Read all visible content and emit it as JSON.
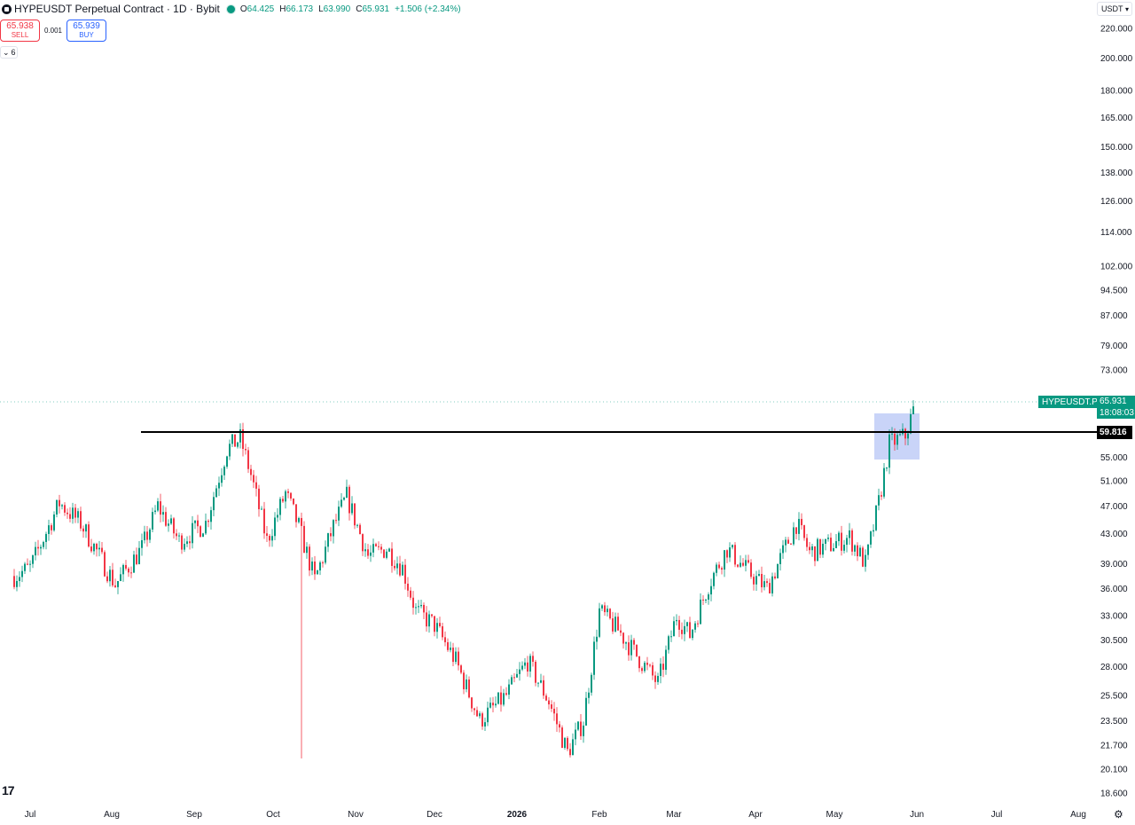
{
  "header": {
    "title": "HYPEUSDT Perpetual Contract · 1D · Bybit",
    "o_label": "O",
    "o_value": "64.425",
    "h_label": "H",
    "h_value": "66.173",
    "l_label": "L",
    "l_value": "63.990",
    "c_label": "C",
    "c_value": "65.931",
    "change": "+1.506 (+2.34%)"
  },
  "trade": {
    "sell_price": "65.938",
    "sell_label": "SELL",
    "spread": "0.001",
    "buy_price": "65.939",
    "buy_label": "BUY"
  },
  "indicators_count": "6",
  "currency": "USDT",
  "price_tag": {
    "symbol": "HYPEUSDT.P",
    "price": "65.931",
    "countdown": "18:08:03"
  },
  "level_tag": "59.816",
  "colors": {
    "up": "#089981",
    "down": "#f23645",
    "highlight": "#b7c6f5"
  },
  "chart_data": {
    "type": "candlestick",
    "scale": "log",
    "y_ticks": [
      18.6,
      20.1,
      21.7,
      23.5,
      25.5,
      28.0,
      30.5,
      33.0,
      36.0,
      39.0,
      43.0,
      47.0,
      51.0,
      55.0,
      73.0,
      79.0,
      87.0,
      94.5,
      102.0,
      114.0,
      126.0,
      138.0,
      150.0,
      165.0,
      180.0,
      200.0,
      220.0
    ],
    "y_tick_labels": [
      "18.600",
      "20.100",
      "21.700",
      "23.500",
      "25.500",
      "28.000",
      "30.500",
      "33.000",
      "36.000",
      "39.000",
      "43.000",
      "47.000",
      "51.000",
      "55.000",
      "73.000",
      "79.000",
      "87.000",
      "94.500",
      "102.000",
      "114.000",
      "126.000",
      "138.000",
      "150.000",
      "165.000",
      "180.000",
      "200.000",
      "220.000"
    ],
    "x_labels": [
      "Jul",
      "Aug",
      "Sep",
      "Oct",
      "Nov",
      "Dec",
      "2026",
      "Feb",
      "Mar",
      "Apr",
      "May",
      "Jun",
      "Jul",
      "Aug"
    ],
    "horizontal_line": 59.816,
    "last_price": 65.931,
    "highlight_box": {
      "x_from": "2026-05-17",
      "x_to": "2026-05-31",
      "y_low": 54.5,
      "y_high": 64.0
    },
    "series_anchors": [
      [
        "2025-06-25",
        37.5
      ],
      [
        "2025-07-01",
        38.5
      ],
      [
        "2025-07-12",
        47.5
      ],
      [
        "2025-07-20",
        44.5
      ],
      [
        "2025-08-02",
        36.5
      ],
      [
        "2025-08-12",
        41.0
      ],
      [
        "2025-08-18",
        47.0
      ],
      [
        "2025-08-26",
        42.0
      ],
      [
        "2025-09-05",
        44.5
      ],
      [
        "2025-09-13",
        56.5
      ],
      [
        "2025-09-18",
        58.5
      ],
      [
        "2025-09-22",
        52.0
      ],
      [
        "2025-09-28",
        42.0
      ],
      [
        "2025-10-05",
        49.0
      ],
      [
        "2025-10-10",
        44.0
      ],
      [
        "2025-10-16",
        37.0
      ],
      [
        "2025-10-23",
        44.0
      ],
      [
        "2025-10-28",
        48.5
      ],
      [
        "2025-11-05",
        40.0
      ],
      [
        "2025-11-12",
        41.0
      ],
      [
        "2025-11-18",
        38.5
      ],
      [
        "2025-11-23",
        33.5
      ],
      [
        "2025-11-30",
        32.0
      ],
      [
        "2025-12-08",
        28.5
      ],
      [
        "2025-12-17",
        23.5
      ],
      [
        "2025-12-27",
        25.5
      ],
      [
        "2026-01-04",
        28.5
      ],
      [
        "2026-01-12",
        25.0
      ],
      [
        "2026-01-19",
        21.2
      ],
      [
        "2026-01-25",
        23.5
      ],
      [
        "2026-01-31",
        33.5
      ],
      [
        "2026-02-07",
        31.5
      ],
      [
        "2026-02-14",
        29.0
      ],
      [
        "2026-02-22",
        26.5
      ],
      [
        "2026-03-01",
        33.0
      ],
      [
        "2026-03-06",
        31.0
      ],
      [
        "2026-03-13",
        36.5
      ],
      [
        "2026-03-20",
        41.0
      ],
      [
        "2026-03-28",
        38.0
      ],
      [
        "2026-04-04",
        36.0
      ],
      [
        "2026-04-15",
        44.5
      ],
      [
        "2026-04-20",
        40.5
      ],
      [
        "2026-04-28",
        41.5
      ],
      [
        "2026-05-05",
        42.5
      ],
      [
        "2026-05-11",
        39.0
      ],
      [
        "2026-05-16",
        47.5
      ],
      [
        "2026-05-20",
        57.5
      ],
      [
        "2026-05-26",
        59.0
      ],
      [
        "2026-05-30",
        65.9
      ]
    ]
  }
}
